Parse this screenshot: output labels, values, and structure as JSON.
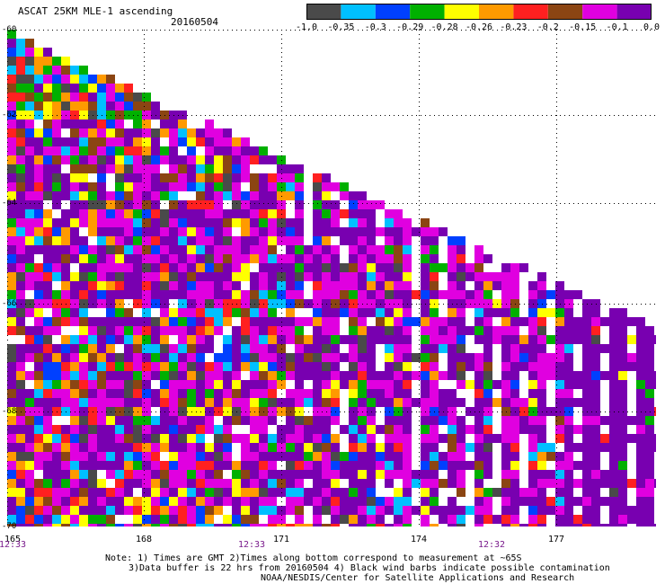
{
  "header": {
    "title": "ASCAT 25KM MLE-1 ascending",
    "date": "20160504"
  },
  "colorbar": {
    "segments": [
      "#4a4a4a",
      "#00c0ff",
      "#0040ff",
      "#00b000",
      "#ffff00",
      "#ff9a00",
      "#ff2020",
      "#8b4513",
      "#e000e0",
      "#7800b0"
    ],
    "labels": [
      "-1.0",
      "-0.35",
      "-0.3",
      "-0.29",
      "-0.28",
      "-0.26",
      "-0.23",
      "-0.2",
      "-0.15",
      "-0.1",
      "0.0"
    ]
  },
  "axes": {
    "y_labels": [
      "-60",
      "-62",
      "-64",
      "-66",
      "-68",
      "-70"
    ],
    "x_labels": [
      "165",
      "168",
      "171",
      "174",
      "177"
    ],
    "time_labels": [
      "12:33",
      "12:33",
      "12:32"
    ]
  },
  "notes": {
    "line1": "Note: 1) Times are GMT 2)Times along bottom correspond to measurement at ~65S",
    "line2": "3)Data buffer is 22 hrs from 20160504 4) Black wind barbs indicate possible contamination",
    "line3": "NOAA/NESDIS/Center for Satellite Applications and Research"
  },
  "palette": {
    "purple": "#7800b0",
    "magenta": "#e000e0",
    "brown": "#8b4513",
    "red": "#ff2020",
    "orange": "#ff9a00",
    "yellow": "#ffff00",
    "green": "#00b000",
    "blue": "#0040ff",
    "cyan": "#00c0ff",
    "gray": "#4a4a4a"
  }
}
